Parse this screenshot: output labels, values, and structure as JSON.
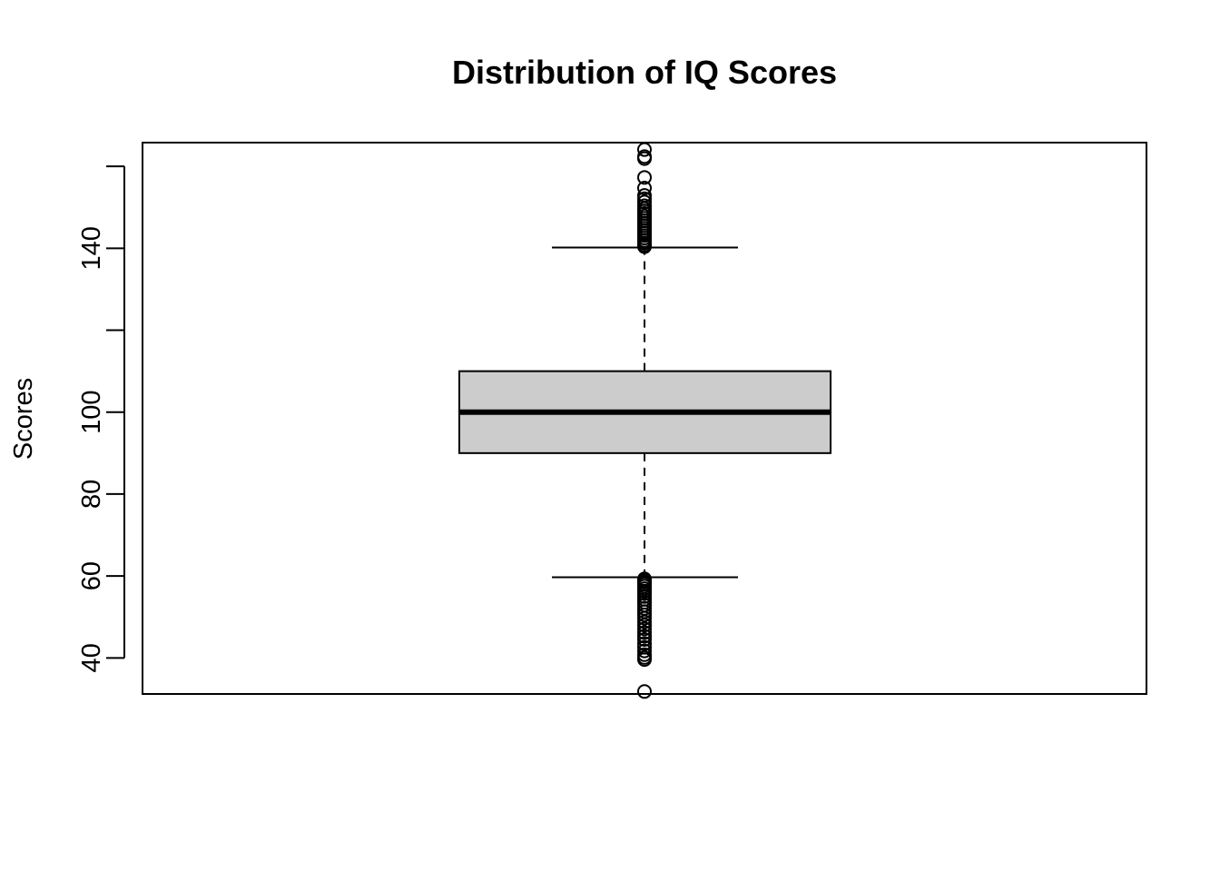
{
  "chart_data": {
    "type": "boxplot",
    "title": "Distribution of IQ Scores",
    "xlabel": "",
    "ylabel": "Scores",
    "ylim": [
      31.2,
      165.8
    ],
    "yticks": [
      40,
      60,
      80,
      100,
      120,
      140,
      160
    ],
    "ytick_labels": [
      "40",
      "60",
      "80",
      "100",
      "",
      "140",
      ""
    ],
    "grid": false,
    "box": {
      "q1": 90,
      "median": 100,
      "q3": 110,
      "whisker_low": 59.7,
      "whisker_high": 140.2,
      "fill": "#cccccc"
    },
    "outliers": [
      31.8,
      39.6,
      40.1,
      40.8,
      41.7,
      42.6,
      43.5,
      44.5,
      45.3,
      46.2,
      47.1,
      48.0,
      48.8,
      49.7,
      50.5,
      51.3,
      52.1,
      52.9,
      53.6,
      54.3,
      55.0,
      55.7,
      56.3,
      56.9,
      57.5,
      58.0,
      58.5,
      58.9,
      59.3,
      140.4,
      140.8,
      141.3,
      141.9,
      142.5,
      143.1,
      143.7,
      144.3,
      144.9,
      145.5,
      146.1,
      146.7,
      147.3,
      147.9,
      148.5,
      149.1,
      149.7,
      150.4,
      151.3,
      152.1,
      152.9,
      154.7,
      157.3,
      161.9,
      162.4,
      164.1
    ]
  }
}
